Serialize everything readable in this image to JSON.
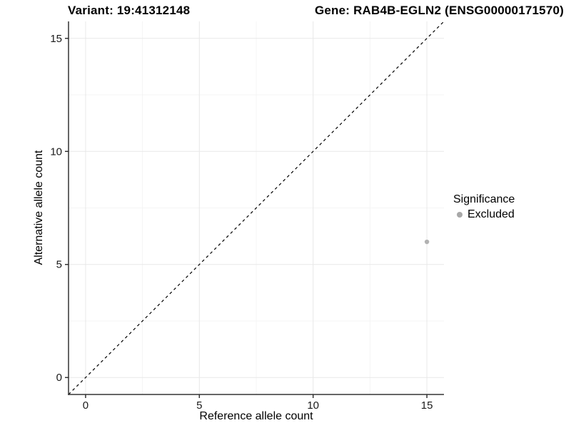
{
  "figure": {
    "title_left": "Variant: 19:41312148",
    "title_right": "Gene: RAB4B-EGLN2 (ENSG00000171570)"
  },
  "chart_data": {
    "type": "scatter",
    "xlabel": "Reference allele count",
    "ylabel": "Alternative allele count",
    "xlim": [
      -0.75,
      15.75
    ],
    "ylim": [
      -0.75,
      15.75
    ],
    "xticks": [
      0,
      5,
      10,
      15
    ],
    "yticks": [
      0,
      5,
      10,
      15
    ],
    "x_minor_ticks": [
      2.5,
      7.5,
      12.5
    ],
    "y_minor_ticks": [
      2.5,
      7.5,
      12.5
    ],
    "grid": true,
    "reference_line": {
      "type": "identity",
      "style": "dashed",
      "color": "#000000",
      "from": [
        -0.75,
        -0.75
      ],
      "to": [
        15.75,
        15.75
      ]
    },
    "series": [
      {
        "name": "Excluded",
        "color": "#b2b2b2",
        "points": [
          {
            "x": 15,
            "y": 6
          }
        ]
      }
    ],
    "legend": {
      "title": "Significance",
      "position": "right",
      "items": [
        {
          "label": "Excluded",
          "color": "#a8a8a8"
        }
      ]
    },
    "colors": {
      "grid_major": "#e8e8e8",
      "grid_minor": "#f4f4f4",
      "axis_line": "#333333",
      "tick_mark": "#333333",
      "tick_text": "#1a1a1a"
    }
  }
}
